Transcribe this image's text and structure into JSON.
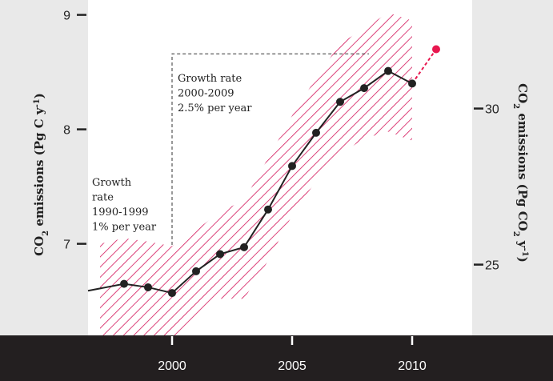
{
  "chart_data": {
    "type": "line",
    "title": "",
    "x": [
      1998,
      1999,
      2000,
      2001,
      2002,
      2003,
      2004,
      2005,
      2006,
      2007,
      2008,
      2009,
      2010
    ],
    "series": [
      {
        "values": [
          6.65,
          6.62,
          6.57,
          6.76,
          6.91,
          6.97,
          7.3,
          7.68,
          7.97,
          8.24,
          8.36,
          8.51,
          8.4
        ],
        "color": "#222222"
      }
    ],
    "projection": {
      "from": [
        2010,
        8.4
      ],
      "to": [
        2011,
        8.7
      ],
      "color": "#e8174f"
    },
    "uncertainty_band": {
      "color": "#d4145a",
      "x": [
        1997,
        1998,
        1999,
        2000,
        2001,
        2002,
        2003,
        2004,
        2005,
        2006,
        2007,
        2008,
        2009,
        2010
      ],
      "upper": [
        7.0,
        7.05,
        7.02,
        6.98,
        7.12,
        7.28,
        7.38,
        7.75,
        8.12,
        8.45,
        8.75,
        8.88,
        9.02,
        8.95
      ],
      "lower": [
        6.2,
        6.18,
        6.18,
        6.17,
        6.38,
        6.52,
        6.52,
        6.85,
        7.25,
        7.55,
        7.78,
        7.92,
        7.98,
        7.9
      ]
    },
    "xlim": [
      1996.5,
      2012.5
    ],
    "ylim": [
      6.2,
      9.13
    ],
    "yticks_left": [
      7,
      8,
      9
    ],
    "yticks_right": [
      25,
      30
    ],
    "xticks": [
      2000,
      2005,
      2010
    ],
    "grid": false,
    "ylabel_left": {
      "main": "CO",
      "sub": "2",
      "tail": " emissions (Pg C y",
      "sup": "-1",
      "end": ")"
    },
    "ylabel_right": {
      "main": "CO",
      "sub": "2",
      "tail": " emissions (Pg CO",
      "sub2": "2",
      "tail2": " y",
      "sup": "-1",
      "end": ")"
    },
    "annotations": {
      "growth_1990s": [
        "Growth",
        "rate",
        "1990-1999",
        "1% per year"
      ],
      "growth_2000s": [
        "Growth rate",
        "2000-2009",
        "2.5% per year"
      ]
    }
  }
}
